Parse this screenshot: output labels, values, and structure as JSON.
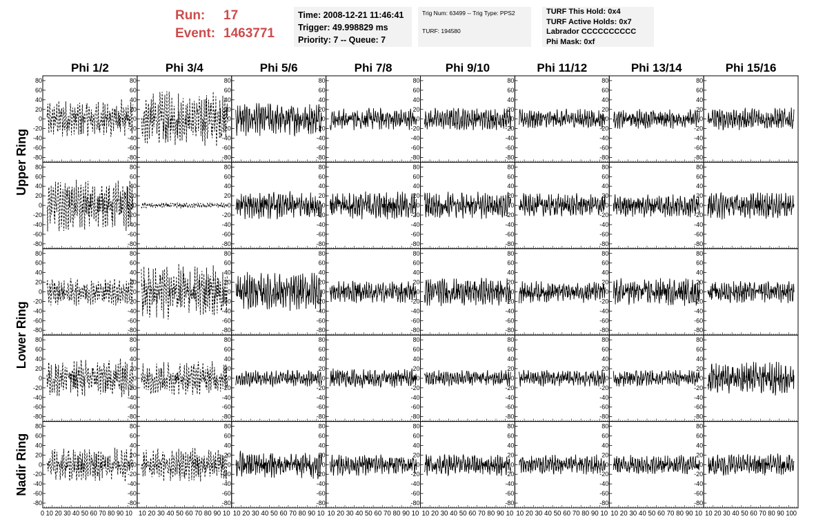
{
  "header": {
    "run_label": "Run:",
    "run_value": "17",
    "event_label": "Event:",
    "event_value": "1463771",
    "time_text": "Time: 2008-12-21 11:46:41",
    "trigger_text": "Trigger: 49.998829 ms",
    "priority_text": "Priority: 7 -- Queue: 7",
    "trig_num_text": "Trig Num: 63499 -- Trig Type: PPS2",
    "turf_text": "TURF: 194580",
    "turf_this_hold": "TURF This Hold: 0x4",
    "turf_active_holds": "TURF Active Holds: 0x7",
    "labrador": "Labrador CCCCCCCCCC",
    "phi_mask": "Phi Mask: 0xf"
  },
  "chart_data": {
    "type": "line",
    "columns": [
      "Phi 1/2",
      "Phi 3/4",
      "Phi 5/6",
      "Phi 7/8",
      "Phi 9/10",
      "Phi 11/12",
      "Phi 13/14",
      "Phi 15/16"
    ],
    "rows": [
      "Upper Ring",
      "Upper Ring",
      "Lower Ring",
      "Lower Ring",
      "Nadir Ring"
    ],
    "row_labels": [
      {
        "text": "Upper Ring",
        "span": [
          0,
          1
        ]
      },
      {
        "text": "Lower Ring",
        "span": [
          2,
          3
        ]
      },
      {
        "text": "Nadir Ring",
        "span": [
          4,
          4
        ]
      }
    ],
    "ylim": [
      -90,
      90
    ],
    "yticks": [
      -80,
      -60,
      -40,
      -20,
      0,
      20,
      40,
      60,
      80
    ],
    "xlim": [
      0,
      100
    ],
    "xticks": [
      0,
      10,
      20,
      30,
      40,
      50,
      60,
      70,
      80,
      90,
      100
    ],
    "xtick_labels_first": "0 10 20 30 40 50 60 70 80 90 10",
    "xtick_labels_mid": "10 20 30 40 50 60 70 80 90 10",
    "xtick_labels_last": "10 20 30 40 50 60 70 80 90 100",
    "amplitudes": [
      [
        35,
        50,
        30,
        20,
        20,
        18,
        18,
        20
      ],
      [
        45,
        5,
        25,
        25,
        25,
        22,
        22,
        25
      ],
      [
        25,
        50,
        35,
        20,
        25,
        20,
        25,
        20
      ],
      [
        35,
        30,
        15,
        18,
        15,
        15,
        15,
        30
      ],
      [
        30,
        30,
        25,
        20,
        20,
        18,
        18,
        20
      ]
    ],
    "dashed_columns": [
      0,
      1
    ]
  }
}
